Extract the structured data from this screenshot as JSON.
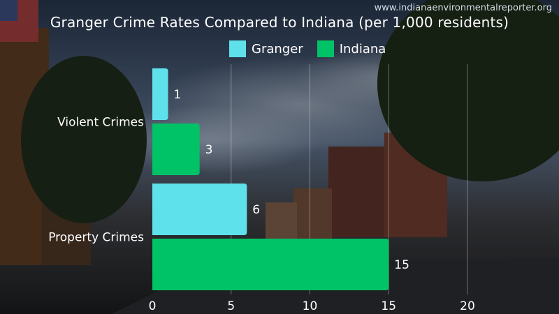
{
  "source_label": "www.indianaenvironmentalreporter.org",
  "colors": {
    "granger": "#5ee1ea",
    "indiana": "#00c267",
    "text": "#ffffff"
  },
  "chart_data": {
    "type": "bar",
    "orientation": "horizontal",
    "title": "Granger Crime Rates Compared to Indiana (per 1,000 residents)",
    "categories": [
      "Violent Crimes",
      "Property Crimes"
    ],
    "series": [
      {
        "name": "Granger",
        "values": [
          1,
          6
        ]
      },
      {
        "name": "Indiana",
        "values": [
          3,
          15
        ]
      }
    ],
    "xlim": [
      0,
      20
    ],
    "xticks": [
      0,
      5,
      10,
      15,
      20
    ],
    "grid": true,
    "legend": "top-center",
    "data_labels": true
  }
}
